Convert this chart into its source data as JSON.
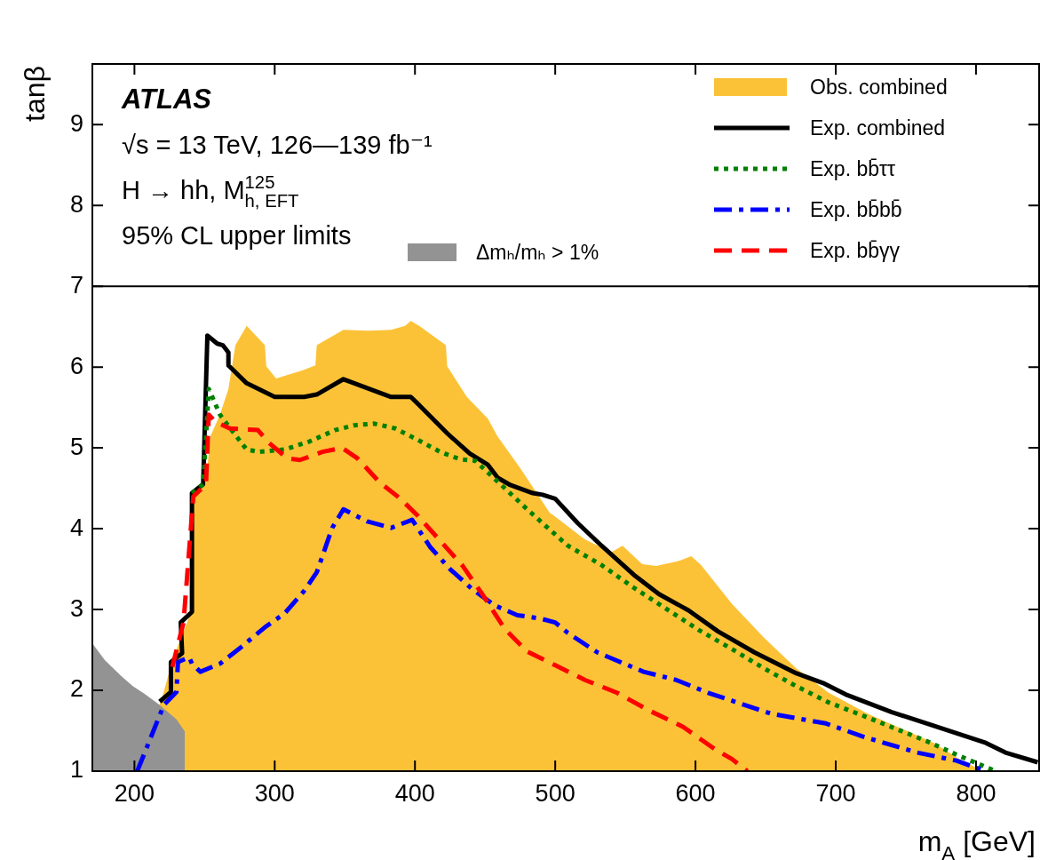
{
  "chart_data": {
    "type": "line",
    "xlabel": "m$_{A}$ [GeV]",
    "ylabel": "tanβ",
    "xlim": [
      170,
      845
    ],
    "ylim": [
      1,
      9.75
    ],
    "xticks": [
      200,
      300,
      400,
      500,
      600,
      700,
      800
    ],
    "yticks": [
      1,
      2,
      3,
      4,
      5,
      6,
      7,
      8,
      9
    ],
    "grid": false,
    "legend": "top right",
    "annotations": [
      "ATLAS",
      "√s = 13 TeV, 126—139 fb⁻¹",
      "H → hh, M$^{125}$$_{h, EFT}$",
      "95% CL upper limits"
    ],
    "ref_lines": [
      {
        "axis": "y",
        "value": 7,
        "color": "#000000"
      }
    ],
    "series": [
      {
        "type": "area",
        "name": "Obs. combined",
        "color": "#fcc237",
        "x": [
          191,
          219,
          227,
          240,
          242,
          251,
          254,
          261,
          267,
          272,
          280,
          293,
          294,
          301,
          320,
          329,
          330,
          349,
          367,
          383,
          393,
          397,
          403,
          422,
          423,
          437,
          452,
          459,
          475,
          496,
          500,
          521,
          540,
          548,
          562,
          572,
          588,
          597,
          604,
          626,
          649,
          672,
          695,
          723,
          749,
          770,
          788,
          805
        ],
        "values": [
          1,
          1.86,
          2.37,
          2.95,
          4.44,
          4.55,
          5.14,
          5.41,
          5.73,
          6.27,
          6.51,
          6.27,
          6.01,
          5.86,
          5.96,
          6.02,
          6.27,
          6.46,
          6.45,
          6.46,
          6.51,
          6.57,
          6.51,
          6.27,
          6.01,
          5.63,
          5.36,
          5.14,
          4.75,
          4.2,
          4.15,
          3.87,
          3.71,
          3.79,
          3.56,
          3.54,
          3.6,
          3.66,
          3.55,
          3.07,
          2.65,
          2.27,
          1.97,
          1.71,
          1.51,
          1.35,
          1.15,
          1
        ]
      },
      {
        "type": "line",
        "name": "Exp. combined",
        "color": "#000000",
        "line_style": "solid",
        "x": [
          218,
          226,
          226,
          234,
          233,
          241,
          241,
          249,
          252,
          259,
          263,
          267,
          267,
          280,
          300,
          321,
          330,
          349,
          383,
          397,
          403,
          423,
          439,
          452,
          459,
          468,
          484,
          491,
          500,
          516,
          533,
          556,
          574,
          595,
          616,
          642,
          672,
          691,
          707,
          740,
          765,
          793,
          807,
          821,
          844
        ],
        "values": [
          1.86,
          1.98,
          2.35,
          2.46,
          2.84,
          2.97,
          4.44,
          4.55,
          6.39,
          6.29,
          6.27,
          6.18,
          6.02,
          5.8,
          5.63,
          5.63,
          5.66,
          5.85,
          5.63,
          5.63,
          5.53,
          5.18,
          4.93,
          4.79,
          4.63,
          4.54,
          4.44,
          4.42,
          4.37,
          4.07,
          3.79,
          3.43,
          3.19,
          2.99,
          2.73,
          2.47,
          2.21,
          2.09,
          1.95,
          1.73,
          1.59,
          1.43,
          1.35,
          1.23,
          1.11
        ]
      },
      {
        "type": "line",
        "name": "Exp. bb̄ττ",
        "color": "#008000",
        "line_style": "dotted",
        "x": [
          241,
          249,
          253,
          261,
          271,
          280,
          289,
          307,
          325,
          343,
          357,
          371,
          386,
          402,
          418,
          432,
          443,
          461,
          480,
          496,
          509,
          533,
          556,
          579,
          602,
          626,
          649,
          672,
          695,
          719,
          742,
          765,
          788,
          814
        ],
        "values": [
          4.44,
          4.55,
          5.73,
          5.41,
          5.18,
          4.98,
          4.95,
          4.98,
          5.08,
          5.22,
          5.28,
          5.3,
          5.24,
          5.1,
          4.95,
          4.86,
          4.84,
          4.55,
          4.24,
          3.99,
          3.79,
          3.55,
          3.27,
          3.01,
          2.75,
          2.51,
          2.27,
          2.05,
          1.85,
          1.69,
          1.53,
          1.37,
          1.19,
          1
        ]
      },
      {
        "type": "line",
        "name": "Exp. bb̄bb̄",
        "color": "#0000ff",
        "line_style": "dashdot",
        "x": [
          202,
          221,
          230,
          231,
          239,
          241,
          247,
          261,
          275,
          293,
          307,
          321,
          330,
          341,
          349,
          366,
          383,
          398,
          411,
          425,
          441,
          457,
          473,
          489,
          500,
          509,
          530,
          563,
          586,
          609,
          654,
          693,
          719,
          758,
          786,
          807
        ],
        "values": [
          1,
          1.82,
          1.98,
          2.35,
          2.41,
          2.33,
          2.23,
          2.33,
          2.52,
          2.78,
          2.95,
          3.23,
          3.46,
          4.01,
          4.24,
          4.09,
          4.01,
          4.11,
          3.77,
          3.5,
          3.25,
          3.05,
          2.93,
          2.89,
          2.84,
          2.71,
          2.47,
          2.23,
          2.13,
          1.97,
          1.71,
          1.59,
          1.43,
          1.23,
          1.13,
          1
        ]
      },
      {
        "type": "line",
        "name": "Exp. bb̄γγ",
        "color": "#ff0000",
        "line_style": "dashed",
        "x": [
          227,
          235,
          242,
          251,
          253,
          258,
          268,
          288,
          296,
          309,
          318,
          334,
          348,
          359,
          375,
          389,
          402,
          418,
          434,
          448,
          464,
          480,
          500,
          521,
          544,
          567,
          591,
          614,
          626,
          637
        ],
        "values": [
          2.29,
          2.84,
          4.4,
          4.55,
          5.41,
          5.32,
          5.24,
          5.22,
          5.06,
          4.87,
          4.85,
          4.95,
          5,
          4.87,
          4.57,
          4.38,
          4.16,
          3.85,
          3.54,
          3.19,
          2.76,
          2.48,
          2.31,
          2.13,
          1.97,
          1.75,
          1.55,
          1.27,
          1.15,
          1
        ]
      },
      {
        "type": "area",
        "name": "Δmₕ/mₕ > 1%",
        "color": "#939393",
        "x": [
          170,
          179,
          191,
          199,
          207,
          218,
          230,
          236
        ],
        "values": [
          2.58,
          2.37,
          2.17,
          2.05,
          1.96,
          1.82,
          1.64,
          1.49
        ]
      }
    ]
  }
}
